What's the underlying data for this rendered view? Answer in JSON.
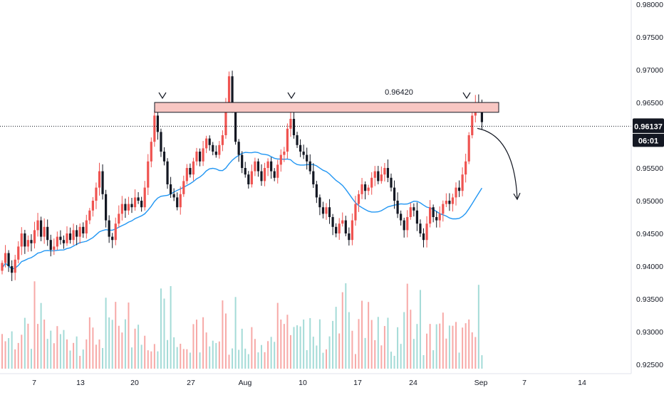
{
  "chart_data": {
    "type": "candlestick",
    "symbol_info": "",
    "x_ticks": [
      "7",
      "13",
      "20",
      "27",
      "Aug",
      "10",
      "17",
      "24",
      "Sep",
      "7",
      "14"
    ],
    "y_ticks": [
      "0.98000",
      "0.97500",
      "0.97000",
      "0.96500",
      "0.96000",
      "0.95500",
      "0.95000",
      "0.94500",
      "0.94000",
      "0.93500",
      "0.93000",
      "0.92500"
    ],
    "ylim": [
      0.9245,
      0.9805
    ],
    "resistance": {
      "label": "0.96420",
      "low": 0.9635,
      "high": 0.965
    },
    "last_price": {
      "label": "0.96137",
      "value": 0.96137,
      "countdown": "06:01"
    },
    "hidden_tick": "0",
    "moving_average": {
      "color": "#2196f3"
    },
    "colors": {
      "up": "#ef5350",
      "down": "#131722",
      "volume_up": "#f7a9a7",
      "volume_down": "#a4dbd7",
      "zone_fill": "#f8c7c3"
    },
    "close": [
      0.9405,
      0.942,
      0.94,
      0.939,
      0.941,
      0.943,
      0.945,
      0.943,
      0.944,
      0.9435,
      0.9455,
      0.947,
      0.9445,
      0.946,
      0.944,
      0.9425,
      0.943,
      0.9445,
      0.944,
      0.9435,
      0.945,
      0.944,
      0.9455,
      0.9445,
      0.946,
      0.945,
      0.947,
      0.9485,
      0.95,
      0.952,
      0.9545,
      0.951,
      0.947,
      0.9445,
      0.944,
      0.9465,
      0.948,
      0.9495,
      0.9485,
      0.9495,
      0.949,
      0.9505,
      0.95,
      0.949,
      0.952,
      0.956,
      0.959,
      0.963,
      0.9605,
      0.9575,
      0.956,
      0.9525,
      0.951,
      0.9505,
      0.949,
      0.951,
      0.953,
      0.955,
      0.954,
      0.956,
      0.9575,
      0.956,
      0.958,
      0.9595,
      0.9585,
      0.9575,
      0.957,
      0.9585,
      0.96,
      0.965,
      0.969,
      0.964,
      0.959,
      0.957,
      0.955,
      0.954,
      0.9525,
      0.9545,
      0.956,
      0.9545,
      0.953,
      0.955,
      0.956,
      0.9545,
      0.9535,
      0.9555,
      0.957,
      0.9575,
      0.961,
      0.9625,
      0.96,
      0.9585,
      0.9575,
      0.957,
      0.956,
      0.9545,
      0.9525,
      0.9505,
      0.949,
      0.948,
      0.949,
      0.9475,
      0.946,
      0.945,
      0.9465,
      0.947,
      0.945,
      0.944,
      0.947,
      0.9495,
      0.951,
      0.9525,
      0.9515,
      0.952,
      0.9535,
      0.9545,
      0.953,
      0.954,
      0.955,
      0.9535,
      0.952,
      0.95,
      0.948,
      0.947,
      0.9455,
      0.9475,
      0.949,
      0.9485,
      0.9465,
      0.945,
      0.944,
      0.9465,
      0.949,
      0.9475,
      0.947,
      0.948,
      0.9495,
      0.95,
      0.9495,
      0.9505,
      0.952,
      0.9515,
      0.954,
      0.956,
      0.96,
      0.963,
      0.965,
      0.9645,
      0.962
    ]
  }
}
